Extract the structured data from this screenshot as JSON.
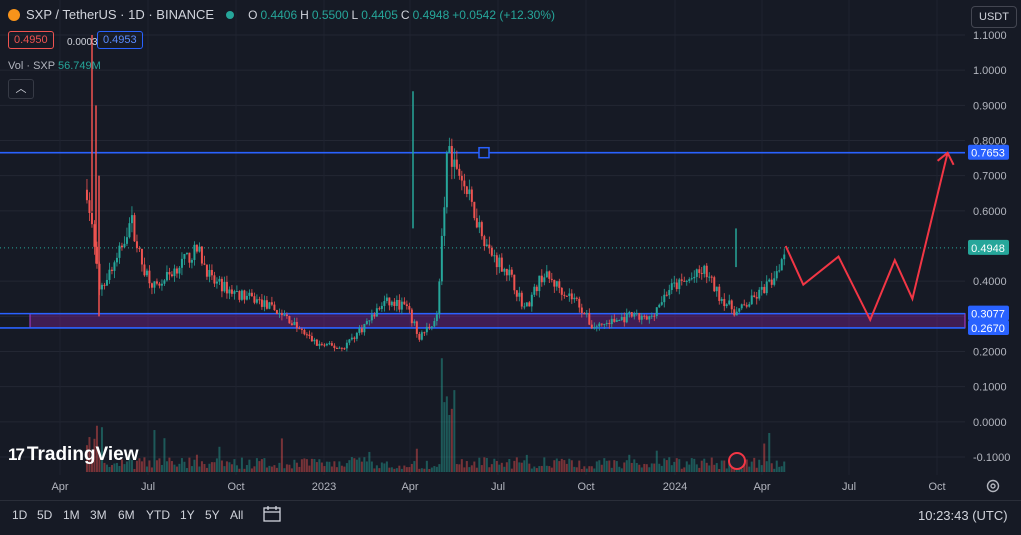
{
  "header": {
    "symbol": "SXP / TetherUS · 1D · BINANCE",
    "open_label": "O",
    "open": "0.4406",
    "high_label": "H",
    "high": "0.5500",
    "low_label": "L",
    "low": "0.4405",
    "close_label": "C",
    "close": "0.4948",
    "change": "+0.0542 (+12.30%)"
  },
  "trade": {
    "sell": "0.4950",
    "spread": "0.0003",
    "buy": "0.4953"
  },
  "volume": {
    "label": "Vol · SXP",
    "value": "56.749M"
  },
  "currency": "USDT",
  "logo_text": "TradingView",
  "time_ranges": [
    "1D",
    "5D",
    "1M",
    "3M",
    "6M",
    "YTD",
    "1Y",
    "5Y",
    "All"
  ],
  "clock": "10:23:43 (UTC)",
  "colors": {
    "up": "#26a69a",
    "down": "#ef5350",
    "line": "#2962ff",
    "zone": "#8e24aa",
    "arrow": "#f23645",
    "bg": "#161a25"
  },
  "chart_data": {
    "type": "candlestick",
    "y_ticks": [
      "1.1000",
      "1.0000",
      "0.9000",
      "0.8000",
      "0.7000",
      "0.6000",
      "0.4000",
      "0.3000",
      "0.2000",
      "0.1000",
      "0.0000",
      "-0.1000"
    ],
    "y_range": [
      -0.13,
      1.12
    ],
    "x_ticks": [
      "Apr",
      "Jul",
      "Oct",
      "2023",
      "Apr",
      "Jul",
      "Oct",
      "2024",
      "Apr",
      "Jul",
      "Oct"
    ],
    "horizontal_lines": [
      0.7653,
      0.3077,
      0.267
    ],
    "price_labels": [
      "0.7653",
      "0.4948",
      "0.3077",
      "0.2670"
    ],
    "last_price": 0.4948,
    "path": [
      {
        "t": 0.0,
        "p": 1.2
      },
      {
        "t": 0.7,
        "p": 0.9
      },
      {
        "t": 1.0,
        "p": 0.7
      },
      {
        "t": 1.4,
        "p": 0.38
      },
      {
        "t": 1.9,
        "p": 0.46
      },
      {
        "t": 2.3,
        "p": 0.58
      },
      {
        "t": 2.6,
        "p": 0.45
      },
      {
        "t": 3.0,
        "p": 0.38
      },
      {
        "t": 3.6,
        "p": 0.44
      },
      {
        "t": 4.2,
        "p": 0.49
      },
      {
        "t": 4.6,
        "p": 0.4
      },
      {
        "t": 5.2,
        "p": 0.37
      },
      {
        "t": 6.0,
        "p": 0.34
      },
      {
        "t": 6.7,
        "p": 0.3
      },
      {
        "t": 7.1,
        "p": 0.26
      },
      {
        "t": 7.6,
        "p": 0.22
      },
      {
        "t": 8.3,
        "p": 0.21
      },
      {
        "t": 8.9,
        "p": 0.27
      },
      {
        "t": 9.5,
        "p": 0.34
      },
      {
        "t": 10.1,
        "p": 0.33
      },
      {
        "t": 10.5,
        "p": 0.24
      },
      {
        "t": 11.0,
        "p": 0.3
      },
      {
        "t": 11.3,
        "p": 0.78
      },
      {
        "t": 11.6,
        "p": 0.72
      },
      {
        "t": 12.0,
        "p": 0.61
      },
      {
        "t": 12.5,
        "p": 0.48
      },
      {
        "t": 13.0,
        "p": 0.43
      },
      {
        "t": 13.5,
        "p": 0.32
      },
      {
        "t": 14.0,
        "p": 0.42
      },
      {
        "t": 14.5,
        "p": 0.38
      },
      {
        "t": 15.0,
        "p": 0.34
      },
      {
        "t": 15.4,
        "p": 0.27
      },
      {
        "t": 15.8,
        "p": 0.28
      },
      {
        "t": 16.5,
        "p": 0.3
      },
      {
        "t": 17.0,
        "p": 0.29
      },
      {
        "t": 17.6,
        "p": 0.38
      },
      {
        "t": 18.1,
        "p": 0.4
      },
      {
        "t": 18.6,
        "p": 0.43
      },
      {
        "t": 19.0,
        "p": 0.36
      },
      {
        "t": 19.5,
        "p": 0.31
      },
      {
        "t": 20.0,
        "p": 0.35
      },
      {
        "t": 20.5,
        "p": 0.4
      },
      {
        "t": 20.9,
        "p": 0.49
      }
    ],
    "annotated_projection": [
      {
        "t": 20.9,
        "p": 0.5
      },
      {
        "t": 21.4,
        "p": 0.39
      },
      {
        "t": 22.4,
        "p": 0.47
      },
      {
        "t": 23.3,
        "p": 0.29
      },
      {
        "t": 24.0,
        "p": 0.46
      },
      {
        "t": 24.5,
        "p": 0.35
      },
      {
        "t": 25.5,
        "p": 0.765
      }
    ]
  }
}
